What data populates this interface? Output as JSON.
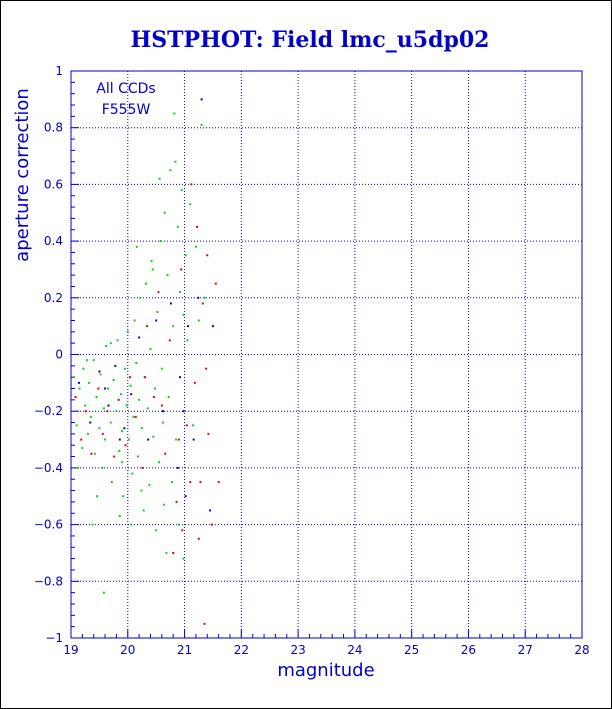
{
  "chart_data": {
    "type": "scatter",
    "title": "HSTPHOT: Field lmc_u5dp02",
    "xlabel": "magnitude",
    "ylabel": "aperture correction",
    "xlim": [
      19,
      28
    ],
    "ylim": [
      -1,
      1
    ],
    "xticks": [
      "19",
      "20",
      "21",
      "22",
      "23",
      "24",
      "25",
      "26",
      "27",
      "28"
    ],
    "yticks": [
      "1",
      "0.8",
      "0.6",
      "0.4",
      "0.2",
      "0",
      "−0.2",
      "−0.4",
      "−0.6",
      "−0.8",
      "−1"
    ],
    "grid": true,
    "annotation": [
      "All CCDs",
      "F555W"
    ],
    "colors": {
      "axis": "#0000cc",
      "title": "#0000cc",
      "points": [
        "#00dd00",
        "#ee0000",
        "#0000cc"
      ]
    },
    "series": [
      {
        "color": "#00dd00",
        "points": [
          [
            19.05,
            -0.08
          ],
          [
            19.1,
            -0.25
          ],
          [
            19.15,
            -0.12
          ],
          [
            19.2,
            -0.33
          ],
          [
            19.22,
            -0.05
          ],
          [
            19.25,
            -0.18
          ],
          [
            19.3,
            -0.28
          ],
          [
            19.32,
            -0.1
          ],
          [
            19.35,
            -0.22
          ],
          [
            19.4,
            -0.02
          ],
          [
            19.42,
            -0.35
          ],
          [
            19.45,
            -0.15
          ],
          [
            19.5,
            -0.26
          ],
          [
            19.52,
            -0.07
          ],
          [
            19.55,
            -0.4
          ],
          [
            19.58,
            -0.19
          ],
          [
            19.6,
            -0.3
          ],
          [
            19.62,
            0.03
          ],
          [
            19.65,
            -0.12
          ],
          [
            19.7,
            -0.24
          ],
          [
            19.72,
            -0.45
          ],
          [
            19.75,
            -0.09
          ],
          [
            19.8,
            -0.2
          ],
          [
            19.82,
            0.05
          ],
          [
            19.85,
            -0.34
          ],
          [
            19.88,
            -0.14
          ],
          [
            19.9,
            -0.27
          ],
          [
            19.92,
            -0.5
          ],
          [
            19.95,
            -0.05
          ],
          [
            19.98,
            -0.18
          ],
          [
            20.0,
            0.08
          ],
          [
            20.02,
            -0.3
          ],
          [
            20.05,
            -0.11
          ],
          [
            20.08,
            -0.42
          ],
          [
            20.1,
            -0.22
          ],
          [
            20.12,
            0.12
          ],
          [
            20.15,
            -0.03
          ],
          [
            20.18,
            -0.36
          ],
          [
            20.2,
            -0.16
          ],
          [
            20.22,
            0.2
          ],
          [
            20.25,
            -0.26
          ],
          [
            20.28,
            -0.55
          ],
          [
            20.3,
            -0.08
          ],
          [
            20.32,
            0.25
          ],
          [
            20.35,
            -0.19
          ],
          [
            20.38,
            -0.46
          ],
          [
            20.4,
            0.02
          ],
          [
            20.42,
            0.33
          ],
          [
            20.45,
            -0.29
          ],
          [
            20.48,
            -0.12
          ],
          [
            20.5,
            -0.62
          ],
          [
            20.52,
            0.15
          ],
          [
            20.55,
            -0.38
          ],
          [
            20.58,
            0.4
          ],
          [
            20.6,
            -0.05
          ],
          [
            20.62,
            -0.24
          ],
          [
            20.65,
            0.5
          ],
          [
            20.68,
            -0.7
          ],
          [
            20.7,
            0.28
          ],
          [
            20.72,
            -0.15
          ],
          [
            20.75,
            0.65
          ],
          [
            20.78,
            -0.45
          ],
          [
            20.8,
            0.1
          ],
          [
            20.82,
            0.85
          ],
          [
            20.85,
            -0.3
          ],
          [
            20.88,
            0.45
          ],
          [
            20.9,
            -0.6
          ],
          [
            20.92,
            0.22
          ],
          [
            20.95,
            0.58
          ],
          [
            20.98,
            -0.72
          ],
          [
            21.02,
            0.35
          ],
          [
            21.05,
            0.05
          ],
          [
            21.1,
            0.53
          ],
          [
            21.15,
            -0.25
          ],
          [
            21.2,
            0.38
          ],
          [
            21.25,
            0.12
          ],
          [
            21.3,
            0.81
          ],
          [
            21.35,
            0.2
          ],
          [
            19.12,
            -0.4
          ],
          [
            19.28,
            -0.02
          ],
          [
            19.46,
            -0.5
          ],
          [
            19.58,
            -0.84
          ],
          [
            19.7,
            0.04
          ],
          [
            19.86,
            -0.57
          ],
          [
            20.06,
            -0.6
          ],
          [
            20.24,
            -0.48
          ],
          [
            20.44,
            0.3
          ],
          [
            20.64,
            -0.53
          ],
          [
            20.84,
            0.68
          ],
          [
            20.98,
            0.14
          ],
          [
            19.38,
            -0.6
          ],
          [
            19.9,
            -0.38
          ],
          [
            20.16,
            0.38
          ],
          [
            20.56,
            0.62
          ]
        ]
      },
      {
        "color": "#ee0000",
        "points": [
          [
            19.08,
            -0.15
          ],
          [
            19.18,
            -0.3
          ],
          [
            19.26,
            -0.2
          ],
          [
            19.36,
            -0.35
          ],
          [
            19.48,
            -0.12
          ],
          [
            19.56,
            -0.28
          ],
          [
            19.64,
            -0.2
          ],
          [
            19.76,
            -0.36
          ],
          [
            19.84,
            -0.16
          ],
          [
            19.96,
            -0.32
          ],
          [
            20.04,
            -0.08
          ],
          [
            20.14,
            -0.22
          ],
          [
            20.26,
            -0.4
          ],
          [
            20.34,
            0.1
          ],
          [
            20.46,
            -0.15
          ],
          [
            20.54,
            0.22
          ],
          [
            20.66,
            -0.35
          ],
          [
            20.74,
            0.05
          ],
          [
            20.86,
            -0.52
          ],
          [
            20.94,
            0.3
          ],
          [
            21.04,
            -0.25
          ],
          [
            21.12,
            0.6
          ],
          [
            21.18,
            -0.1
          ],
          [
            21.22,
            0.45
          ],
          [
            21.28,
            -0.45
          ],
          [
            21.32,
            0.18
          ],
          [
            21.38,
            -0.05
          ],
          [
            21.42,
            -0.28
          ],
          [
            21.48,
            -0.6
          ],
          [
            21.55,
            0.25
          ],
          [
            21.6,
            -0.45
          ],
          [
            21.35,
            -0.95
          ],
          [
            21.1,
            -0.45
          ],
          [
            20.96,
            -0.62
          ],
          [
            20.8,
            -0.7
          ],
          [
            21.25,
            -0.65
          ],
          [
            21.4,
            0.35
          ],
          [
            20.6,
            -0.18
          ],
          [
            20.3,
            -0.08
          ],
          [
            20.9,
            -0.3
          ]
        ]
      },
      {
        "color": "#0000cc",
        "points": [
          [
            19.14,
            -0.1
          ],
          [
            19.34,
            -0.24
          ],
          [
            19.5,
            -0.06
          ],
          [
            19.66,
            -0.18
          ],
          [
            19.78,
            -0.04
          ],
          [
            19.94,
            -0.26
          ],
          [
            20.06,
            -0.14
          ],
          [
            20.2,
            0.06
          ],
          [
            20.36,
            -0.3
          ],
          [
            20.5,
            0.12
          ],
          [
            20.62,
            -0.2
          ],
          [
            20.76,
            0.18
          ],
          [
            20.88,
            -0.4
          ],
          [
            20.92,
            -0.08
          ],
          [
            21.06,
            0.1
          ],
          [
            21.16,
            -0.3
          ],
          [
            21.24,
            0.2
          ],
          [
            21.3,
            0.9
          ],
          [
            21.5,
            0.1
          ],
          [
            21.45,
            -0.55
          ],
          [
            21.02,
            -0.5
          ],
          [
            20.98,
            -0.2
          ],
          [
            19.86,
            -0.3
          ],
          [
            19.6,
            -0.12
          ]
        ]
      }
    ]
  }
}
